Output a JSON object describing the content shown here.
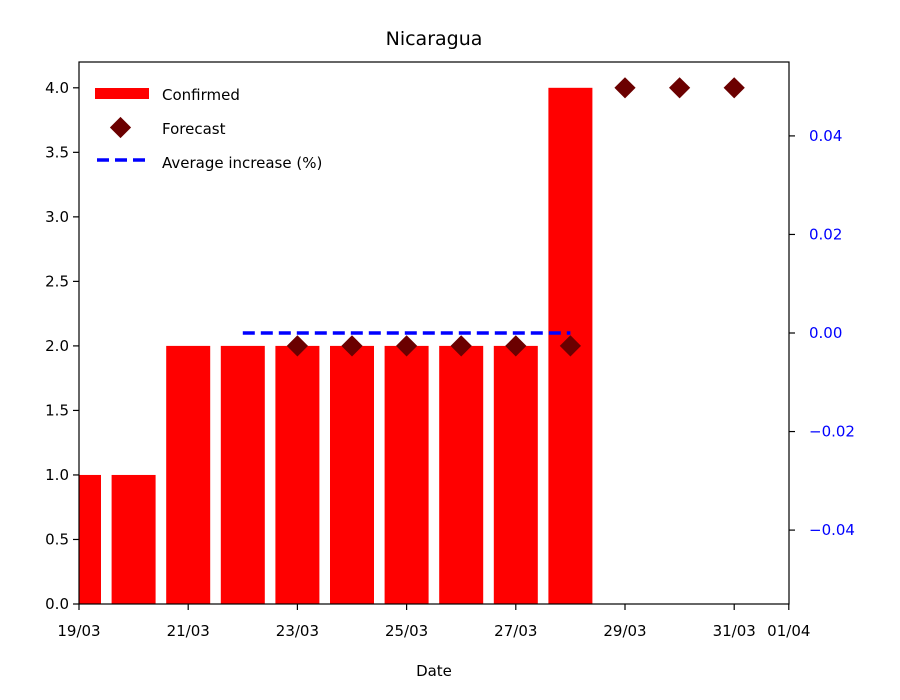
{
  "chart_data": {
    "type": "bar",
    "title": "Nicaragua",
    "xlabel": "Date",
    "ylabel": "",
    "ylabel_right": "",
    "x_tick_labels": [
      "19/03",
      "21/03",
      "23/03",
      "25/03",
      "27/03",
      "29/03",
      "31/03",
      "01/04"
    ],
    "ylim": [
      0,
      4.2
    ],
    "y_ticks": [
      "0.0",
      "0.5",
      "1.0",
      "1.5",
      "2.0",
      "2.5",
      "3.0",
      "3.5",
      "4.0"
    ],
    "ylim_right": [
      -0.055,
      0.055
    ],
    "y_ticks_right": [
      "0.04",
      "0.02",
      "0.00",
      "−0.02",
      "−0.04"
    ],
    "legend": {
      "placement": "top-left",
      "confirmed": "Confirmed",
      "forecast": "Forecast",
      "average": "Average increase (%)"
    },
    "series": [
      {
        "name": "Confirmed",
        "kind": "bar",
        "color": "#ff0000",
        "x": [
          "19/03",
          "20/03",
          "21/03",
          "22/03",
          "23/03",
          "24/03",
          "25/03",
          "26/03",
          "27/03",
          "28/03"
        ],
        "values": [
          1,
          1,
          2,
          2,
          2,
          2,
          2,
          2,
          2,
          4
        ]
      },
      {
        "name": "Forecast",
        "kind": "scatter",
        "color": "#6b0000",
        "x": [
          "23/03",
          "24/03",
          "25/03",
          "26/03",
          "27/03",
          "28/03",
          "29/03",
          "30/03",
          "31/03"
        ],
        "values": [
          2,
          2,
          2,
          2,
          2,
          2,
          4,
          4,
          4
        ]
      },
      {
        "name": "Average increase (%)",
        "kind": "line",
        "axis": "right",
        "color": "#0000ff",
        "x": [
          "22/03",
          "28/03"
        ],
        "values": [
          0,
          0
        ]
      }
    ]
  }
}
